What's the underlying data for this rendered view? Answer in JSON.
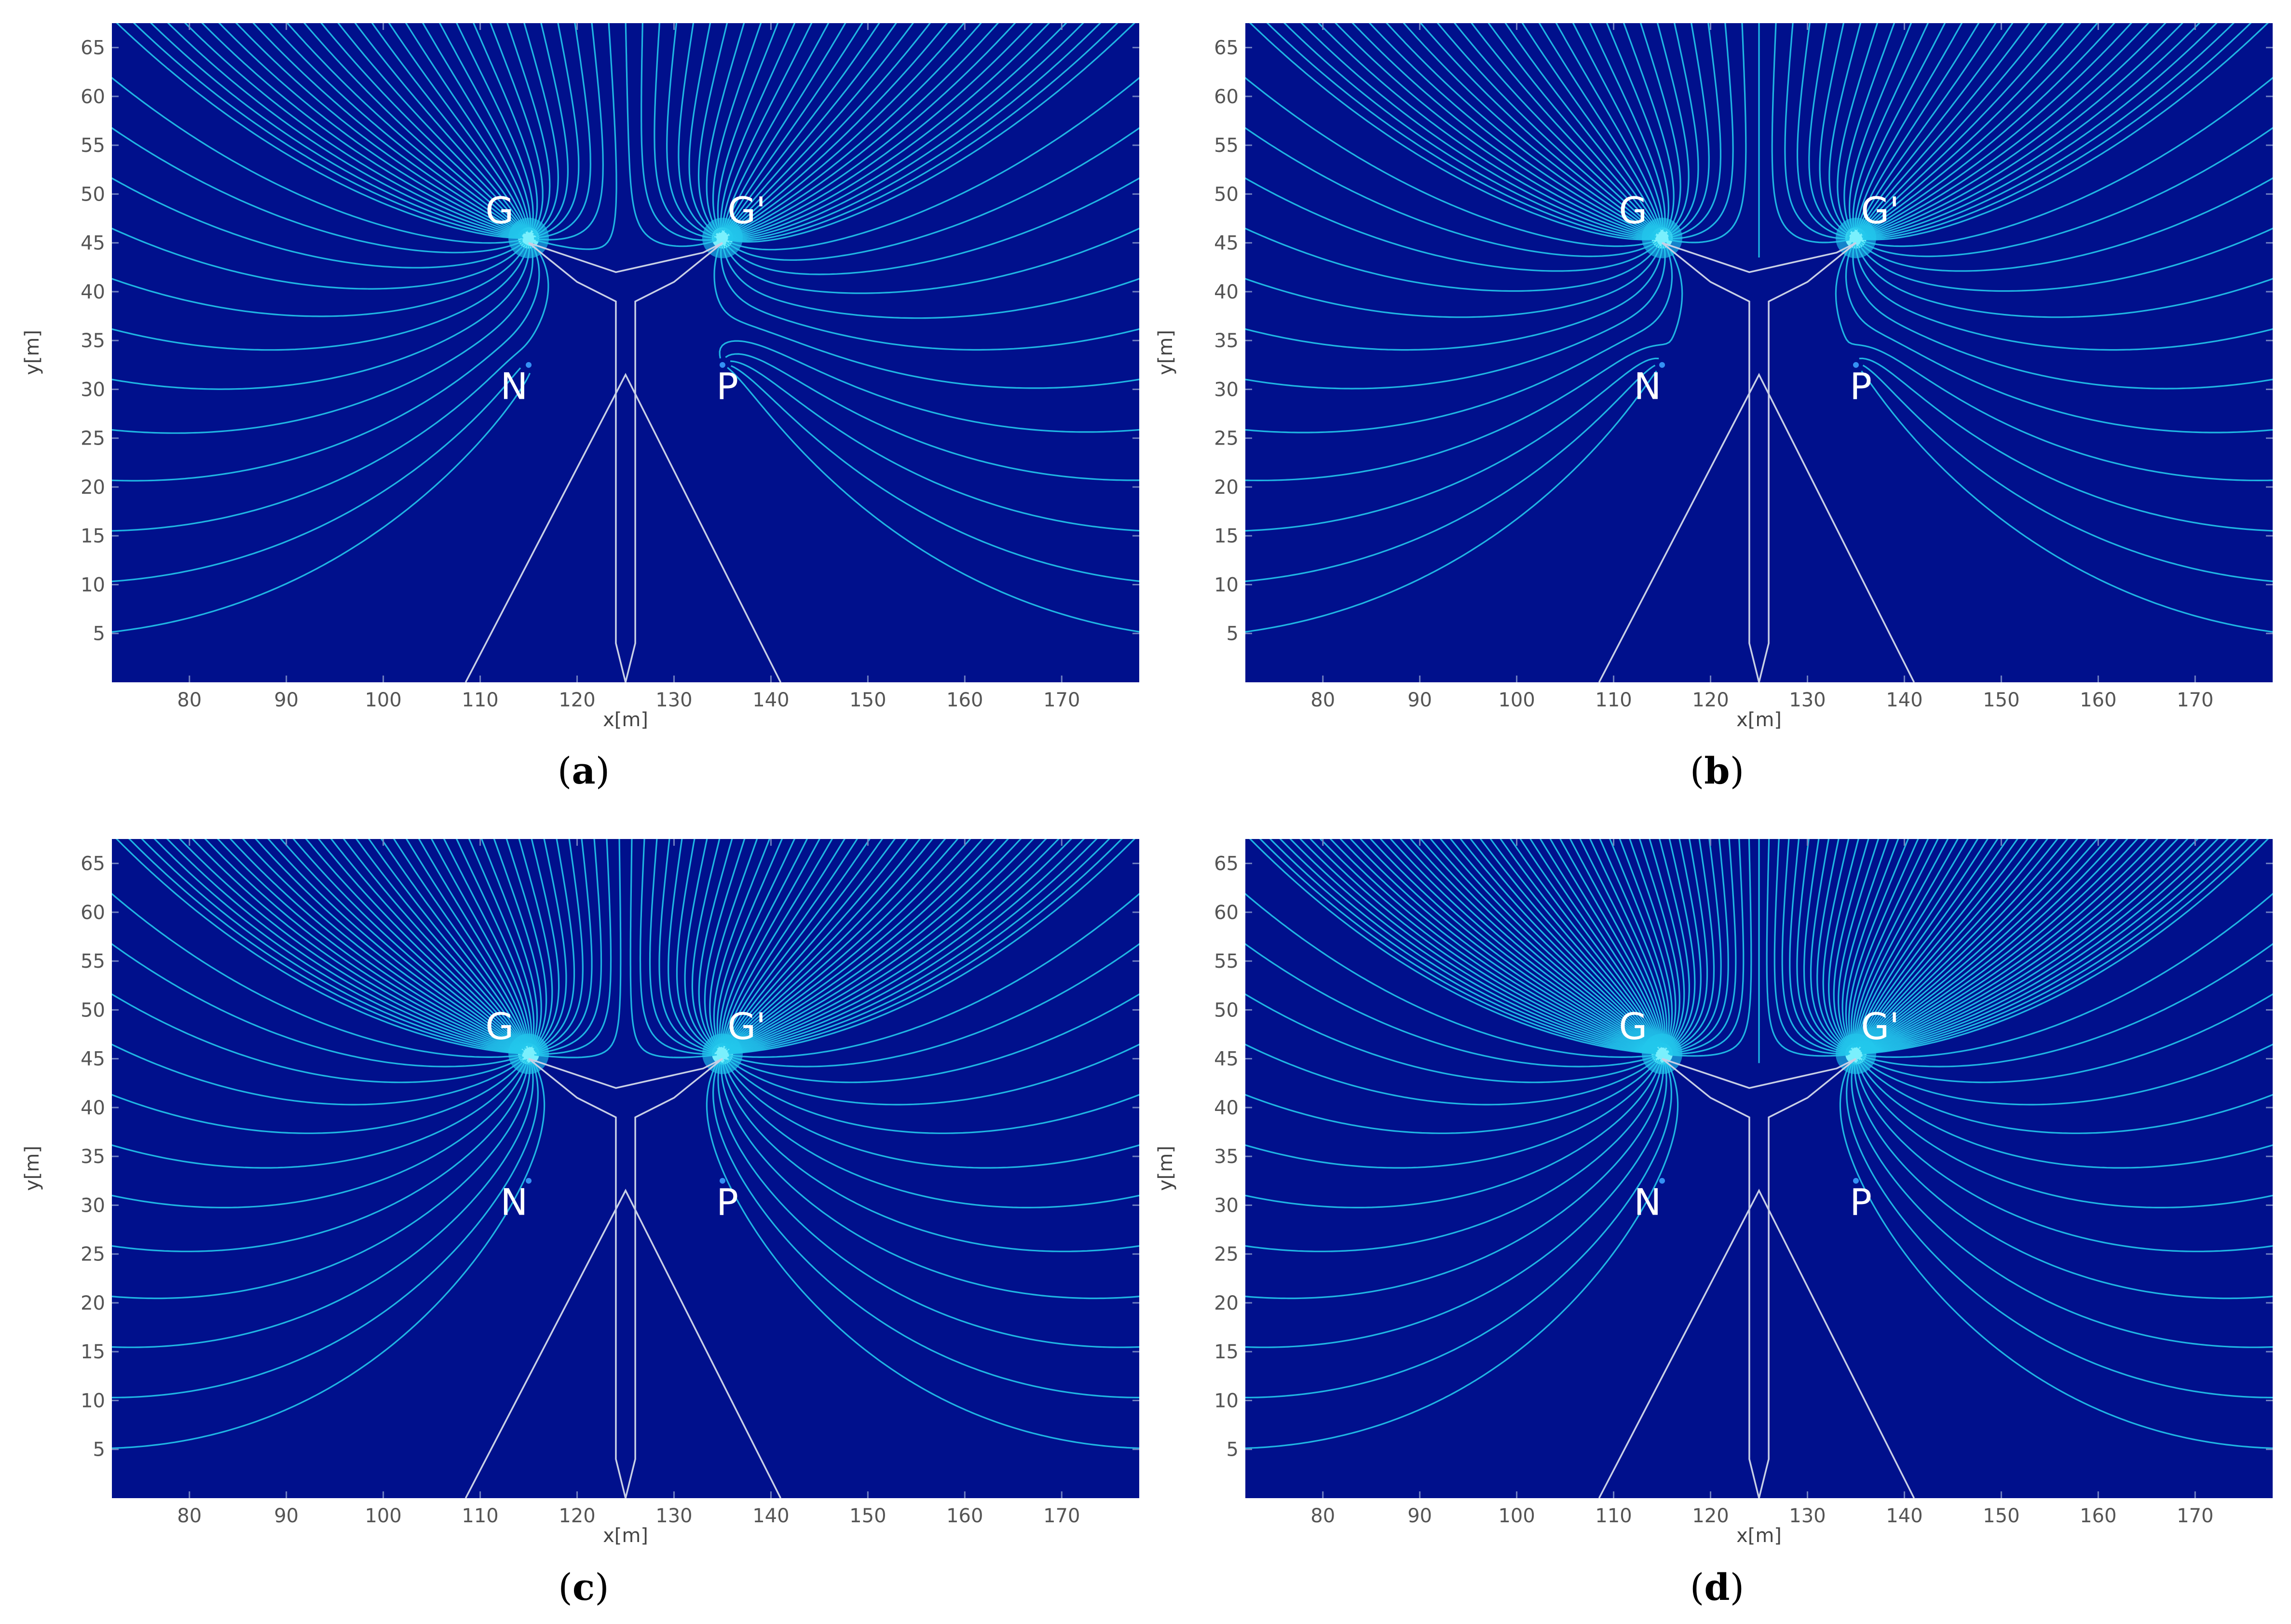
{
  "chart_data": [
    {
      "type": "streamline",
      "caption": "(a)",
      "caption_letter": "a",
      "xlabel": "x[m]",
      "ylabel": "y[m]",
      "xlim": [
        72,
        178
      ],
      "ylim": [
        0,
        67.5
      ],
      "xticks": [
        80,
        90,
        100,
        110,
        120,
        130,
        140,
        150,
        160,
        170
      ],
      "yticks": [
        5,
        10,
        15,
        20,
        25,
        30,
        35,
        40,
        45,
        50,
        55,
        60,
        65
      ],
      "annotations": [
        {
          "text": "G",
          "x": 112,
          "y": 47
        },
        {
          "text": "G'",
          "x": 137.5,
          "y": 47
        },
        {
          "text": "N",
          "x": 113.5,
          "y": 29
        },
        {
          "text": "P",
          "x": 135.5,
          "y": 29
        }
      ],
      "sources": [
        {
          "name": "G",
          "x": 115,
          "y": 45.5,
          "strength": 1.0
        },
        {
          "name": "G'",
          "x": 135,
          "y": 45.5,
          "strength": 1.0
        },
        {
          "name": "N",
          "x": 115,
          "y": 32.5,
          "strength": 0.05
        },
        {
          "name": "P",
          "x": 135,
          "y": 32.5,
          "strength": 0.35
        }
      ],
      "density": 1.0,
      "colors": {
        "background": "#00108c",
        "streamline": "#22c8ec",
        "outline": "#c8d0e6",
        "annotation": "#ffffff"
      }
    },
    {
      "type": "streamline",
      "caption": "(b)",
      "caption_letter": "b",
      "xlabel": "x[m]",
      "ylabel": "y[m]",
      "xlim": [
        72,
        178
      ],
      "ylim": [
        0,
        67.5
      ],
      "xticks": [
        80,
        90,
        100,
        110,
        120,
        130,
        140,
        150,
        160,
        170
      ],
      "yticks": [
        5,
        10,
        15,
        20,
        25,
        30,
        35,
        40,
        45,
        50,
        55,
        60,
        65
      ],
      "annotations": [
        {
          "text": "G",
          "x": 112,
          "y": 47
        },
        {
          "text": "G'",
          "x": 137.5,
          "y": 47
        },
        {
          "text": "N",
          "x": 113.5,
          "y": 29
        },
        {
          "text": "P",
          "x": 135.5,
          "y": 29
        }
      ],
      "sources": [
        {
          "name": "G",
          "x": 115,
          "y": 45.5,
          "strength": 1.0
        },
        {
          "name": "G'",
          "x": 135,
          "y": 45.5,
          "strength": 1.0
        },
        {
          "name": "N",
          "x": 115,
          "y": 32.5,
          "strength": 0.2
        },
        {
          "name": "P",
          "x": 135,
          "y": 32.5,
          "strength": 0.2
        }
      ],
      "density": 1.0,
      "colors": {
        "background": "#00108c",
        "streamline": "#22c8ec",
        "outline": "#c8d0e6",
        "annotation": "#ffffff"
      }
    },
    {
      "type": "streamline",
      "caption": "(c)",
      "caption_letter": "c",
      "xlabel": "x[m]",
      "ylabel": "y[m]",
      "xlim": [
        72,
        178
      ],
      "ylim": [
        0,
        67.5
      ],
      "xticks": [
        80,
        90,
        100,
        110,
        120,
        130,
        140,
        150,
        160,
        170
      ],
      "yticks": [
        5,
        10,
        15,
        20,
        25,
        30,
        35,
        40,
        45,
        50,
        55,
        60,
        65
      ],
      "annotations": [
        {
          "text": "G",
          "x": 112,
          "y": 47
        },
        {
          "text": "G'",
          "x": 137.5,
          "y": 47
        },
        {
          "text": "N",
          "x": 113.5,
          "y": 29
        },
        {
          "text": "P",
          "x": 135.5,
          "y": 29
        }
      ],
      "sources": [
        {
          "name": "G",
          "x": 115,
          "y": 45.5,
          "strength": 1.0
        },
        {
          "name": "G'",
          "x": 135,
          "y": 45.5,
          "strength": 1.0
        },
        {
          "name": "N",
          "x": 115,
          "y": 32.5,
          "strength": 0.0
        },
        {
          "name": "P",
          "x": 135,
          "y": 32.5,
          "strength": 0.0
        }
      ],
      "density": 1.35,
      "colors": {
        "background": "#00108c",
        "streamline": "#22c8ec",
        "outline": "#c8d0e6",
        "annotation": "#ffffff"
      }
    },
    {
      "type": "streamline",
      "caption": "(d)",
      "caption_letter": "d",
      "xlabel": "x[m]",
      "ylabel": "y[m]",
      "xlim": [
        72,
        178
      ],
      "ylim": [
        0,
        67.5
      ],
      "xticks": [
        80,
        90,
        100,
        110,
        120,
        130,
        140,
        150,
        160,
        170
      ],
      "yticks": [
        5,
        10,
        15,
        20,
        25,
        30,
        35,
        40,
        45,
        50,
        55,
        60,
        65
      ],
      "annotations": [
        {
          "text": "G",
          "x": 112,
          "y": 47
        },
        {
          "text": "G'",
          "x": 137.5,
          "y": 47
        },
        {
          "text": "N",
          "x": 113.5,
          "y": 29
        },
        {
          "text": "P",
          "x": 135.5,
          "y": 29
        }
      ],
      "sources": [
        {
          "name": "G",
          "x": 115,
          "y": 45.5,
          "strength": 1.0
        },
        {
          "name": "G'",
          "x": 135,
          "y": 45.5,
          "strength": 1.0
        },
        {
          "name": "N",
          "x": 115,
          "y": 32.5,
          "strength": 0.0
        },
        {
          "name": "P",
          "x": 135,
          "y": 32.5,
          "strength": 0.0
        }
      ],
      "density": 1.7,
      "colors": {
        "background": "#00108c",
        "streamline": "#22c8ec",
        "outline": "#c8d0e6",
        "annotation": "#ffffff"
      }
    }
  ],
  "aircraft_outline": {
    "points": [
      [
        115,
        45
      ],
      [
        124,
        42
      ],
      [
        133,
        44
      ],
      [
        135,
        45
      ],
      [
        131,
        43
      ],
      [
        126,
        42
      ],
      [
        126,
        38
      ],
      [
        134,
        41
      ],
      [
        135,
        39
      ],
      [
        126,
        38
      ],
      [
        126,
        3
      ],
      [
        125,
        0
      ],
      [
        124,
        3
      ],
      [
        124,
        38
      ],
      [
        115,
        39
      ],
      [
        116,
        41
      ],
      [
        124,
        38
      ],
      [
        124,
        42
      ]
    ],
    "wing": [
      [
        108.5,
        0
      ],
      [
        125,
        31.5
      ],
      [
        141,
        0
      ]
    ],
    "fuselage": [
      [
        115,
        45
      ],
      [
        124,
        42
      ],
      [
        133,
        44
      ],
      [
        135,
        45
      ],
      [
        130,
        41
      ],
      [
        126,
        39
      ],
      [
        126,
        4
      ],
      [
        125,
        0
      ],
      [
        124,
        4
      ],
      [
        124,
        39
      ],
      [
        120,
        41
      ],
      [
        115,
        45
      ]
    ]
  }
}
